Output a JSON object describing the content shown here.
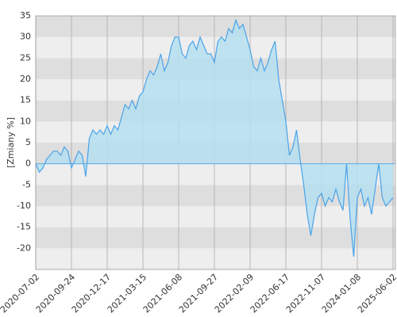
{
  "chart_data": {
    "type": "area",
    "y_label": "[Zmiany %]",
    "categories": [
      "2020-07-02",
      null,
      null,
      null,
      null,
      null,
      null,
      null,
      null,
      null,
      "2020-09-24",
      null,
      null,
      null,
      null,
      null,
      null,
      null,
      null,
      null,
      "2020-12-17",
      null,
      null,
      null,
      null,
      null,
      null,
      null,
      null,
      null,
      "2021-03-15",
      null,
      null,
      null,
      null,
      null,
      null,
      null,
      null,
      null,
      "2021-06-08",
      null,
      null,
      null,
      null,
      null,
      null,
      null,
      null,
      null,
      "2021-09-27",
      null,
      null,
      null,
      null,
      null,
      null,
      null,
      null,
      null,
      "2022-02-09",
      null,
      null,
      null,
      null,
      null,
      null,
      null,
      null,
      null,
      "2022-06-17",
      null,
      null,
      null,
      null,
      null,
      null,
      null,
      null,
      null,
      "2022-11-07",
      null,
      null,
      null,
      null,
      null,
      null,
      null,
      null,
      null,
      "2024-01-08",
      null,
      null,
      null,
      null,
      null,
      null,
      null,
      null,
      null,
      "2025-06-02"
    ],
    "values": [
      0,
      -2,
      -1,
      1,
      2,
      3,
      3,
      2,
      4,
      3,
      -1,
      1,
      3,
      2,
      -3,
      6,
      8,
      7,
      8,
      7,
      9,
      7,
      9,
      8,
      11,
      14,
      13,
      15,
      13,
      16,
      17,
      20,
      22,
      21,
      23,
      26,
      22,
      24,
      28,
      30,
      30,
      26,
      25,
      28,
      29,
      27,
      30,
      28,
      26,
      26,
      24,
      29,
      30,
      29,
      32,
      31,
      34,
      32,
      33,
      30,
      27,
      23,
      22,
      25,
      22,
      24,
      27,
      29,
      20,
      15,
      10,
      2,
      4,
      8,
      1,
      -5,
      -12,
      -17,
      -12,
      -8,
      -7,
      -10,
      -8,
      -9,
      -6,
      -9,
      -11,
      0,
      -13,
      -22,
      -8,
      -6,
      -10,
      -8,
      -12,
      -6,
      0,
      -8,
      -10,
      -9,
      -8
    ],
    "line_color": "#4ba3e8",
    "fill_color": "#b5dff0",
    "ylim": [
      -25,
      35
    ],
    "yticks": [
      -20,
      -15,
      -10,
      -5,
      0,
      5,
      10,
      15,
      20,
      25,
      30,
      35
    ],
    "grid": true
  }
}
